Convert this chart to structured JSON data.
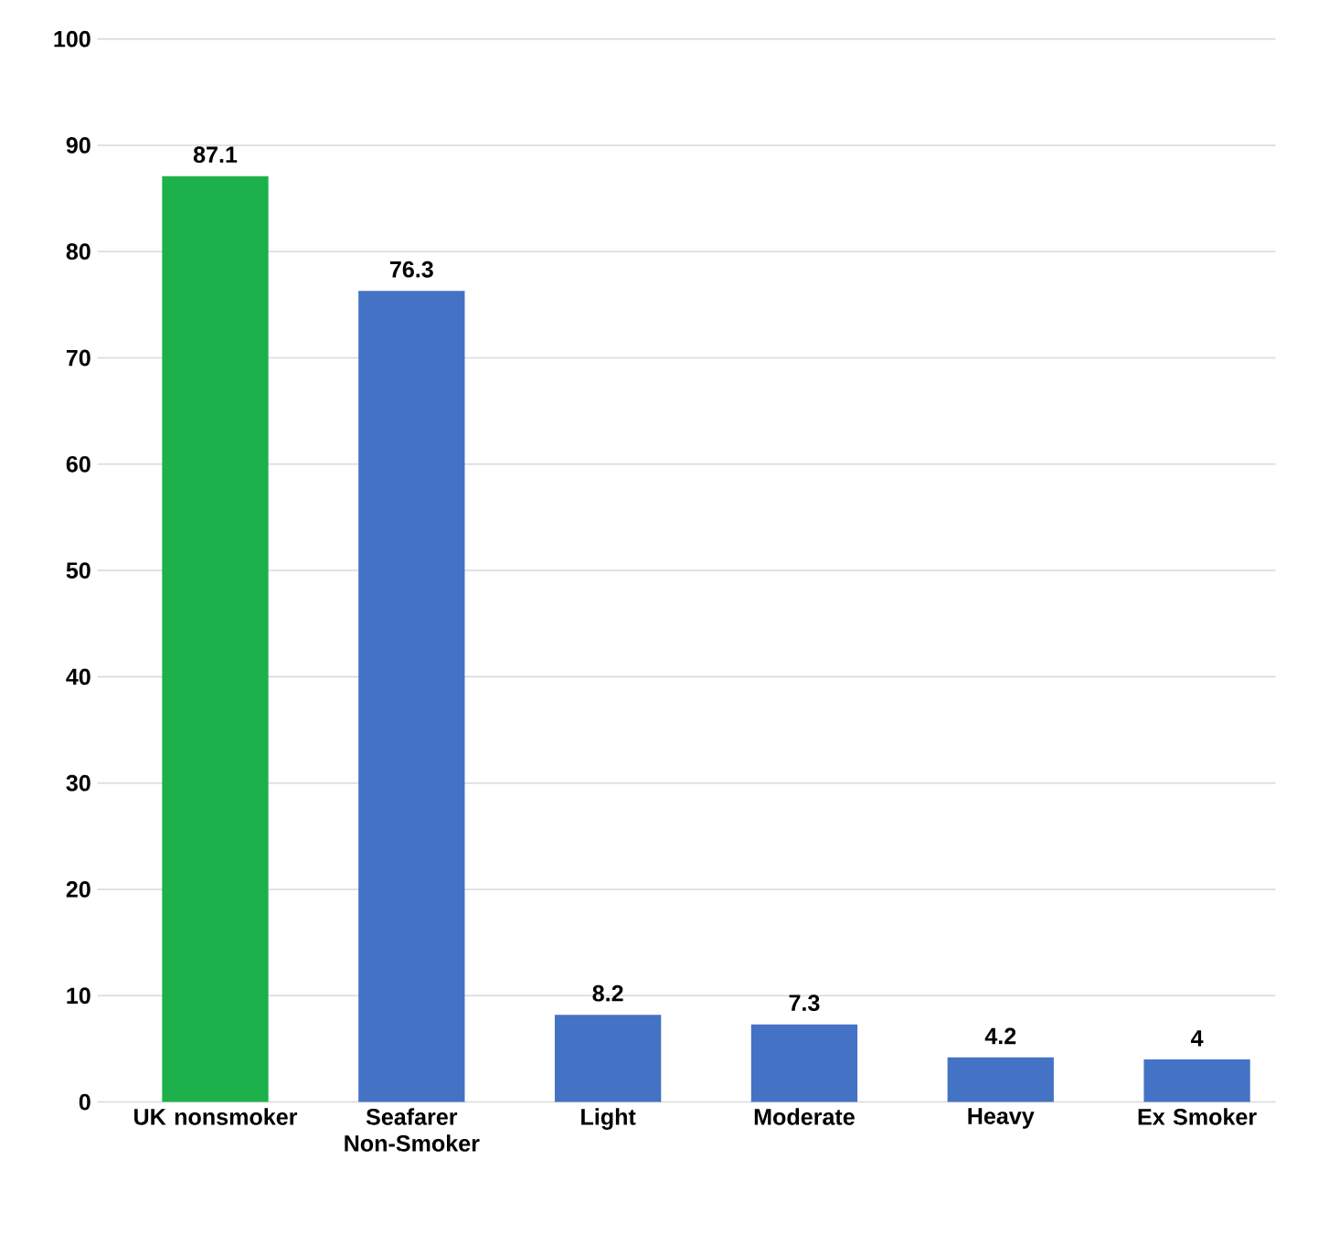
{
  "chart_data": {
    "type": "bar",
    "categories": [
      "UK nonsmoker",
      "Seafarer Non-Smoker",
      "Light",
      "Moderate",
      "Heavy",
      "Ex Smoker"
    ],
    "values": [
      87.1,
      76.3,
      8.2,
      7.3,
      4.2,
      4
    ],
    "colors": [
      "#1db14b",
      "#4472c4",
      "#4472c4",
      "#4472c4",
      "#4472c4",
      "#4472c4"
    ],
    "ylim": [
      0,
      100
    ],
    "yticks": [
      0,
      10,
      20,
      30,
      40,
      50,
      60,
      70,
      80,
      90,
      100
    ],
    "grid": "y",
    "data_labels": true
  }
}
